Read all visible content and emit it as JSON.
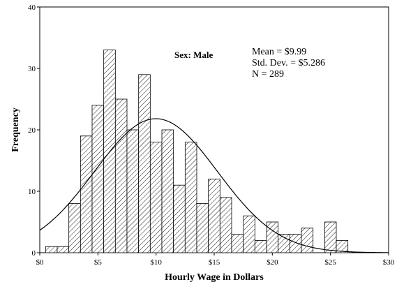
{
  "chart_data": {
    "type": "bar",
    "subtype": "histogram",
    "xlabel": "Hourly Wage in Dollars",
    "ylabel": "Frequency",
    "panel_label": "Sex: Male",
    "stats": [
      "Mean = $9.99",
      "Std. Dev. = $5.286",
      "N = 289"
    ],
    "xlim": [
      0,
      30
    ],
    "ylim": [
      0,
      40
    ],
    "x_ticks": [
      0,
      5,
      10,
      15,
      20,
      25,
      30
    ],
    "x_tick_labels": [
      "$0",
      "$5",
      "$10",
      "$15",
      "$20",
      "$25",
      "$30"
    ],
    "y_ticks": [
      0,
      10,
      20,
      30,
      40
    ],
    "y_tick_labels": [
      "0",
      "10",
      "20",
      "30",
      "40"
    ],
    "bin_width": 1,
    "bins": [
      {
        "x0": 0.5,
        "count": 1
      },
      {
        "x0": 1.5,
        "count": 1
      },
      {
        "x0": 2.5,
        "count": 8
      },
      {
        "x0": 3.5,
        "count": 19
      },
      {
        "x0": 4.5,
        "count": 24
      },
      {
        "x0": 5.5,
        "count": 33
      },
      {
        "x0": 6.5,
        "count": 25
      },
      {
        "x0": 7.5,
        "count": 20
      },
      {
        "x0": 8.5,
        "count": 29
      },
      {
        "x0": 9.5,
        "count": 18
      },
      {
        "x0": 10.5,
        "count": 20
      },
      {
        "x0": 11.5,
        "count": 11
      },
      {
        "x0": 12.5,
        "count": 18
      },
      {
        "x0": 13.5,
        "count": 8
      },
      {
        "x0": 14.5,
        "count": 12
      },
      {
        "x0": 15.5,
        "count": 9
      },
      {
        "x0": 16.5,
        "count": 3
      },
      {
        "x0": 17.5,
        "count": 6
      },
      {
        "x0": 18.5,
        "count": 2
      },
      {
        "x0": 19.5,
        "count": 5
      },
      {
        "x0": 20.5,
        "count": 3
      },
      {
        "x0": 21.5,
        "count": 3
      },
      {
        "x0": 22.5,
        "count": 4
      },
      {
        "x0": 24.5,
        "count": 5
      },
      {
        "x0": 25.5,
        "count": 2
      }
    ],
    "normal_curve": {
      "mean": 9.99,
      "sd": 5.286,
      "n": 289
    },
    "grid": false,
    "bar_fill": "hatched",
    "colors": {
      "bars_stroke": "#000000",
      "background": "#ffffff",
      "curve": "#000000"
    }
  }
}
